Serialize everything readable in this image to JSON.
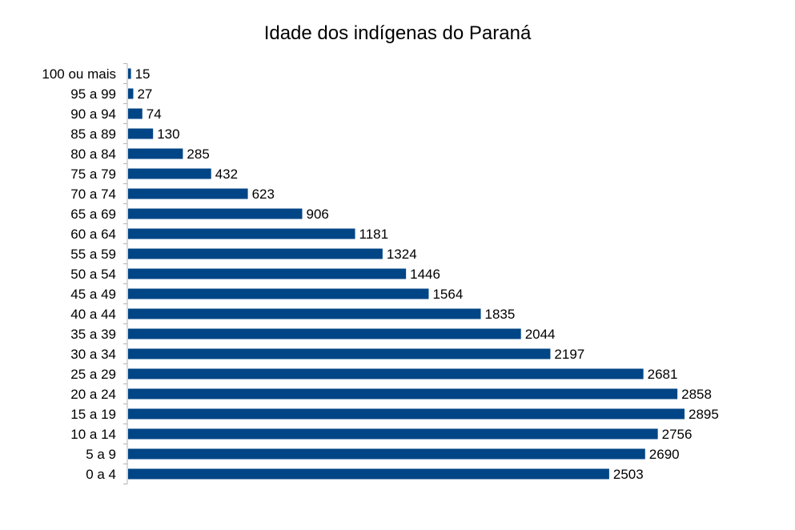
{
  "chart_data": {
    "type": "bar",
    "orientation": "horizontal",
    "title": "Idade dos indígenas do Paraná",
    "xlabel": "",
    "ylabel": "",
    "categories": [
      "100 ou mais",
      "95 a 99",
      "90 a 94",
      "85 a 89",
      "80 a 84",
      "75 a 79",
      "70 a 74",
      "65 a 69",
      "60 a 64",
      "55 a 59",
      "50 a 54",
      "45 a 49",
      "40 a 44",
      "35 a 39",
      "30 a 34",
      "25 a 29",
      "20 a 24",
      "15 a 19",
      "10 a 14",
      "5 a 9",
      "0 a 4"
    ],
    "values": [
      15,
      27,
      74,
      130,
      285,
      432,
      623,
      906,
      1181,
      1324,
      1446,
      1564,
      1835,
      2044,
      2197,
      2681,
      2858,
      2895,
      2756,
      2690,
      2503
    ],
    "xlim": [
      0,
      2895
    ],
    "grid": false,
    "legend": "none",
    "bar_color": "#004586"
  }
}
